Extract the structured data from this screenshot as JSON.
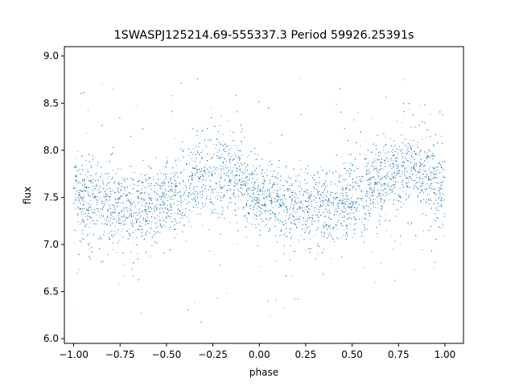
{
  "chart_data": {
    "type": "scatter",
    "title": "1SWASPJ125214.69-555337.3 Period 59926.25391s",
    "xlabel": "phase",
    "ylabel": "flux",
    "xlim": [
      -1.05,
      1.1
    ],
    "ylim": [
      5.95,
      9.1
    ],
    "xticks": [
      -1.0,
      -0.75,
      -0.5,
      -0.25,
      0.0,
      0.25,
      0.5,
      0.75,
      1.0
    ],
    "xtick_labels": [
      "−1.00",
      "−0.75",
      "−0.50",
      "−0.25",
      "0.00",
      "0.25",
      "0.50",
      "0.75",
      "1.00"
    ],
    "yticks": [
      6.0,
      6.5,
      7.0,
      7.5,
      8.0,
      8.5,
      9.0
    ],
    "ytick_labels": [
      "6.0",
      "6.5",
      "7.0",
      "7.5",
      "8.0",
      "8.5",
      "9.0"
    ],
    "grid": false,
    "series": [
      {
        "marker_color": "#1f77b4",
        "x_range": [
          -1.0,
          1.0
        ],
        "n_points": 16000,
        "mean_curve": {
          "phase": [
            -1.0,
            -0.9,
            -0.8,
            -0.7,
            -0.6,
            -0.5,
            -0.4,
            -0.3,
            -0.2,
            -0.1,
            0.0,
            0.1,
            0.2,
            0.3,
            0.4,
            0.5,
            0.6,
            0.7,
            0.8,
            0.9,
            1.0
          ],
          "flux": [
            7.5,
            7.45,
            7.4,
            7.38,
            7.4,
            7.48,
            7.6,
            7.72,
            7.8,
            7.7,
            7.5,
            7.45,
            7.4,
            7.38,
            7.42,
            7.5,
            7.6,
            7.72,
            7.8,
            7.72,
            7.58
          ]
        },
        "scatter_sigma": 0.2,
        "outlier_range": [
          6.1,
          8.9
        ]
      }
    ]
  }
}
